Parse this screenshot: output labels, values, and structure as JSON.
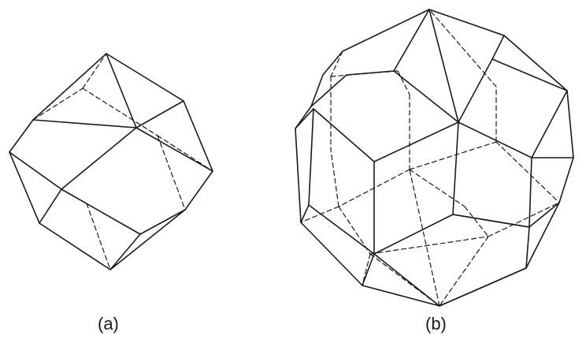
{
  "figures": [
    {
      "id": "a",
      "caption": "(a)"
    },
    {
      "id": "b",
      "caption": "(b)"
    }
  ],
  "colors": {
    "background": "#ffffff",
    "line": "#1a1a1a"
  }
}
